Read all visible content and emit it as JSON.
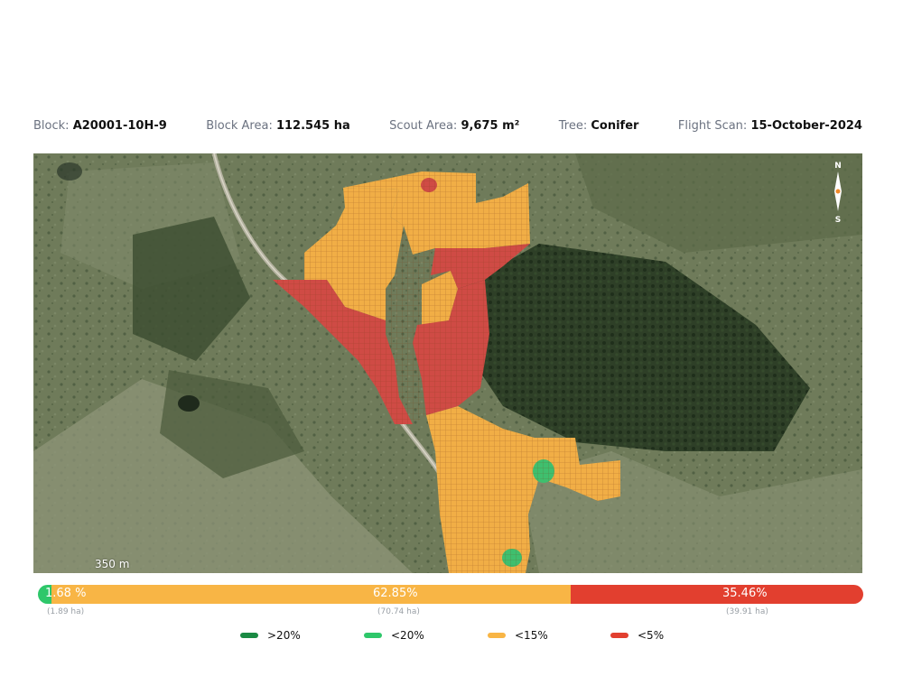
{
  "info": {
    "block_label": "Block:",
    "block_value": "A20001-10H-9",
    "area_label": "Block Area:",
    "area_value": "112.545 ha",
    "scout_label": "Scout Area:",
    "scout_value": "9,675 m²",
    "tree_label": "Tree:",
    "tree_value": "Conifer",
    "flight_label": "Flight Scan:",
    "flight_value": "15-October-2024"
  },
  "map": {
    "compass_n": "N",
    "compass_s": "S",
    "scale_label": "350 m"
  },
  "summary": {
    "green_pct": "1.68 %",
    "green_ha": "(1.89 ha)",
    "orange_pct": "62.85%",
    "orange_ha": "(70.74 ha)",
    "red_pct": "35.46%",
    "red_ha": "(39.91 ha)",
    "shares": [
      0.0168,
      0.6285,
      0.3546
    ]
  },
  "legend": [
    {
      "label": ">20%",
      "color": "#1a8a43"
    },
    {
      "label": "<20%",
      "color": "#2ec76a"
    },
    {
      "label": "<15%",
      "color": "#f8b545"
    },
    {
      "label": "<5%",
      "color": "#e23f2f"
    }
  ]
}
